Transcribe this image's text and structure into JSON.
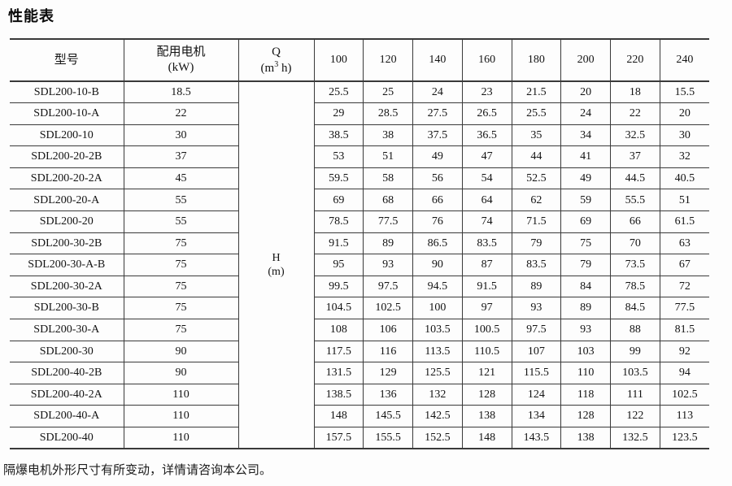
{
  "title": "性能表",
  "colors": {
    "background": "#fdfdfd",
    "text": "#141414",
    "grid_line": "#3a3a3a"
  },
  "table": {
    "header": {
      "model": "型号",
      "motor": [
        "配用电机",
        "(kW)"
      ],
      "q_label": "Q",
      "q_unit_open": "(m",
      "q_unit_sup": "3",
      "q_unit_close": " h)",
      "flow_columns": [
        "100",
        "120",
        "140",
        "160",
        "180",
        "200",
        "220",
        "240"
      ]
    },
    "head_label": [
      "H",
      "(m)"
    ],
    "rows": [
      {
        "model": "SDL200-10-B",
        "kw": "18.5",
        "values": [
          "25.5",
          "25",
          "24",
          "23",
          "21.5",
          "20",
          "18",
          "15.5"
        ]
      },
      {
        "model": "SDL200-10-A",
        "kw": "22",
        "values": [
          "29",
          "28.5",
          "27.5",
          "26.5",
          "25.5",
          "24",
          "22",
          "20"
        ]
      },
      {
        "model": "SDL200-10",
        "kw": "30",
        "values": [
          "38.5",
          "38",
          "37.5",
          "36.5",
          "35",
          "34",
          "32.5",
          "30"
        ]
      },
      {
        "model": "SDL200-20-2B",
        "kw": "37",
        "values": [
          "53",
          "51",
          "49",
          "47",
          "44",
          "41",
          "37",
          "32"
        ]
      },
      {
        "model": "SDL200-20-2A",
        "kw": "45",
        "values": [
          "59.5",
          "58",
          "56",
          "54",
          "52.5",
          "49",
          "44.5",
          "40.5"
        ]
      },
      {
        "model": "SDL200-20-A",
        "kw": "55",
        "values": [
          "69",
          "68",
          "66",
          "64",
          "62",
          "59",
          "55.5",
          "51"
        ]
      },
      {
        "model": "SDL200-20",
        "kw": "55",
        "values": [
          "78.5",
          "77.5",
          "76",
          "74",
          "71.5",
          "69",
          "66",
          "61.5"
        ]
      },
      {
        "model": "SDL200-30-2B",
        "kw": "75",
        "values": [
          "91.5",
          "89",
          "86.5",
          "83.5",
          "79",
          "75",
          "70",
          "63"
        ]
      },
      {
        "model": "SDL200-30-A-B",
        "kw": "75",
        "values": [
          "95",
          "93",
          "90",
          "87",
          "83.5",
          "79",
          "73.5",
          "67"
        ]
      },
      {
        "model": "SDL200-30-2A",
        "kw": "75",
        "values": [
          "99.5",
          "97.5",
          "94.5",
          "91.5",
          "89",
          "84",
          "78.5",
          "72"
        ]
      },
      {
        "model": "SDL200-30-B",
        "kw": "75",
        "values": [
          "104.5",
          "102.5",
          "100",
          "97",
          "93",
          "89",
          "84.5",
          "77.5"
        ]
      },
      {
        "model": "SDL200-30-A",
        "kw": "75",
        "values": [
          "108",
          "106",
          "103.5",
          "100.5",
          "97.5",
          "93",
          "88",
          "81.5"
        ]
      },
      {
        "model": "SDL200-30",
        "kw": "90",
        "values": [
          "117.5",
          "116",
          "113.5",
          "110.5",
          "107",
          "103",
          "99",
          "92"
        ]
      },
      {
        "model": "SDL200-40-2B",
        "kw": "90",
        "values": [
          "131.5",
          "129",
          "125.5",
          "121",
          "115.5",
          "110",
          "103.5",
          "94"
        ]
      },
      {
        "model": "SDL200-40-2A",
        "kw": "110",
        "values": [
          "138.5",
          "136",
          "132",
          "128",
          "124",
          "118",
          "111",
          "102.5"
        ]
      },
      {
        "model": "SDL200-40-A",
        "kw": "110",
        "values": [
          "148",
          "145.5",
          "142.5",
          "138",
          "134",
          "128",
          "122",
          "113"
        ]
      },
      {
        "model": "SDL200-40",
        "kw": "110",
        "values": [
          "157.5",
          "155.5",
          "152.5",
          "148",
          "143.5",
          "138",
          "132.5",
          "123.5"
        ]
      }
    ]
  },
  "footer_note": "隔爆电机外形尺寸有所变动，详情请咨询本公司。"
}
